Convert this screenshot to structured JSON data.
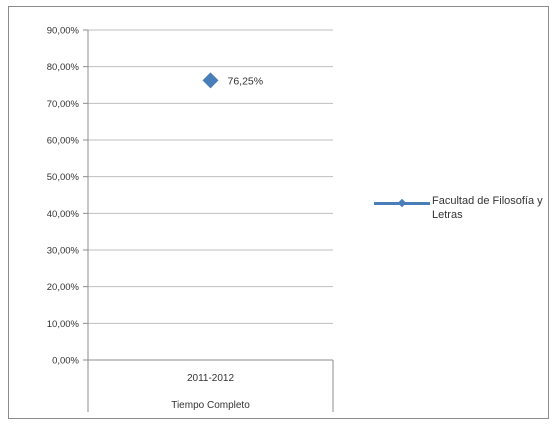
{
  "colors": {
    "series": "#4a7ebb",
    "gridline": "#bfbfbf",
    "axis": "#8c8c8c",
    "frame": "#8c8c8c"
  },
  "chart_data": {
    "type": "line",
    "categories": [
      "2011-2012"
    ],
    "category_groups": [
      "Tiempo Completo"
    ],
    "series": [
      {
        "name": "Facultad de Filosofía y Letras",
        "values": [
          76.25
        ],
        "data_labels": [
          "76,25%"
        ],
        "marker": "diamond"
      }
    ],
    "ylim": [
      0,
      90
    ],
    "yticks": [
      0,
      10,
      20,
      30,
      40,
      50,
      60,
      70,
      80,
      90
    ],
    "ytick_labels": [
      "0,00%",
      "10,00%",
      "20,00%",
      "30,00%",
      "40,00%",
      "50,00%",
      "60,00%",
      "70,00%",
      "80,00%",
      "90,00%"
    ],
    "grid": true,
    "legend_position": "right",
    "title": "",
    "xlabel": "",
    "ylabel": ""
  }
}
